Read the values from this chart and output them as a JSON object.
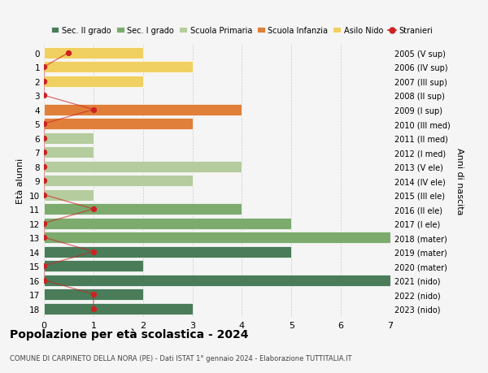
{
  "ages": [
    18,
    17,
    16,
    15,
    14,
    13,
    12,
    11,
    10,
    9,
    8,
    7,
    6,
    5,
    4,
    3,
    2,
    1,
    0
  ],
  "right_labels": [
    "2005 (V sup)",
    "2006 (IV sup)",
    "2007 (III sup)",
    "2008 (II sup)",
    "2009 (I sup)",
    "2010 (III med)",
    "2011 (II med)",
    "2012 (I med)",
    "2013 (V ele)",
    "2014 (IV ele)",
    "2015 (III ele)",
    "2016 (II ele)",
    "2017 (I ele)",
    "2018 (mater)",
    "2019 (mater)",
    "2020 (mater)",
    "2021 (nido)",
    "2022 (nido)",
    "2023 (nido)"
  ],
  "bar_values": [
    3,
    2,
    7,
    2,
    5,
    7,
    5,
    4,
    1,
    3,
    4,
    1,
    1,
    3,
    4,
    0,
    2,
    3,
    2
  ],
  "bar_colors": [
    "#4a7c59",
    "#4a7c59",
    "#4a7c59",
    "#4a7c59",
    "#4a7c59",
    "#7dab6e",
    "#7dab6e",
    "#7dab6e",
    "#b5cc9e",
    "#b5cc9e",
    "#b5cc9e",
    "#b5cc9e",
    "#b5cc9e",
    "#e07f3a",
    "#e07f3a",
    "#e07f3a",
    "#f0d060",
    "#f0d060",
    "#f0d060"
  ],
  "stranieri_values": [
    1,
    1,
    0,
    0,
    1,
    0,
    0,
    1,
    0,
    0,
    0,
    0,
    0,
    0,
    1,
    0,
    0,
    0,
    0.5
  ],
  "stranieri_color": "#cc2222",
  "stranieri_line_color": "#cc444488",
  "title": "Popolazione per età scolastica - 2024",
  "subtitle": "COMUNE DI CARPINETO DELLA NORA (PE) - Dati ISTAT 1° gennaio 2024 - Elaborazione TUTTITALIA.IT",
  "ylabel": "Età alunni",
  "right_ylabel": "Anni di nascita",
  "xlim": [
    0,
    7
  ],
  "legend_labels": [
    "Sec. II grado",
    "Sec. I grado",
    "Scuola Primaria",
    "Scuola Infanzia",
    "Asilo Nido",
    "Stranieri"
  ],
  "legend_colors": [
    "#4a7c59",
    "#7dab6e",
    "#b5cc9e",
    "#e07f3a",
    "#f0d060",
    "#cc2222"
  ],
  "bg_color": "#f5f5f5",
  "grid_color": "#cccccc"
}
